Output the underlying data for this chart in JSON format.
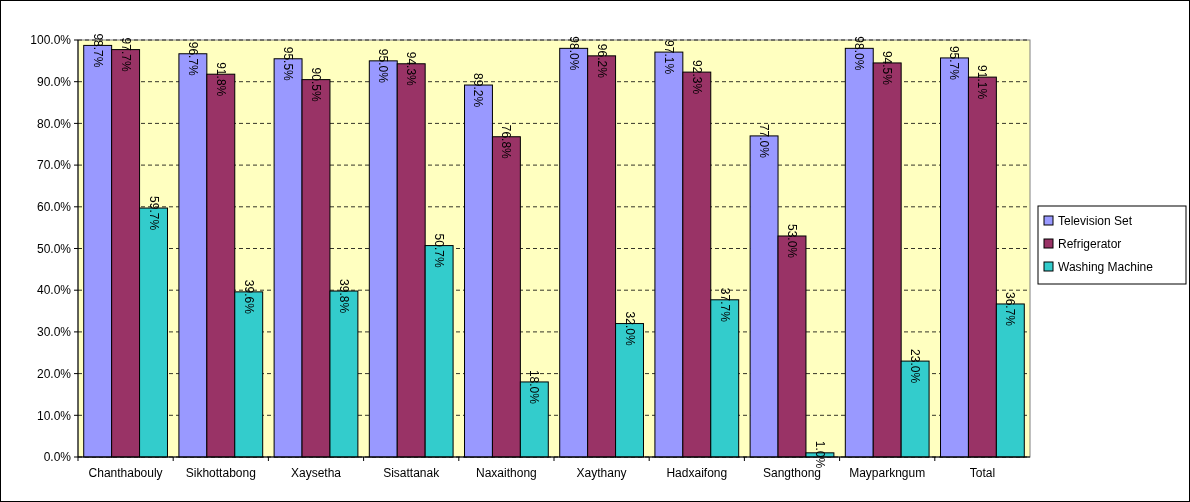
{
  "chart_data": {
    "type": "bar",
    "categories": [
      "Chanthabouly",
      "Sikhottabong",
      "Xaysetha",
      "Sisattanak",
      "Naxaithong",
      "Xaythany",
      "Hadxaifong",
      "Sangthong",
      "Mayparkngum",
      "Total"
    ],
    "series": [
      {
        "name": "Television Set",
        "color": "#9999ff",
        "values": [
          98.7,
          96.7,
          95.5,
          95.0,
          89.2,
          98.0,
          97.1,
          77.0,
          98.0,
          95.7
        ],
        "value_labels": [
          "98.7%",
          "96.7%",
          "95.5%",
          "95.0%",
          "89.2%",
          "98.0%",
          "97.1%",
          "77.0%",
          "98.0%",
          "95.7%"
        ]
      },
      {
        "name": "Refrigerator",
        "color": "#993366",
        "values": [
          97.7,
          91.8,
          90.5,
          94.3,
          76.8,
          96.2,
          92.3,
          53.0,
          94.5,
          91.1
        ],
        "value_labels": [
          "97.7%",
          "91.8%",
          "90.5%",
          "94.3%",
          "76.8%",
          "96.2%",
          "92.3%",
          "53.0%",
          "94.5%",
          "91.1%"
        ]
      },
      {
        "name": "Washing Machine",
        "color": "#33cccc",
        "values": [
          59.7,
          39.6,
          39.8,
          50.7,
          18.0,
          32.0,
          37.7,
          1.0,
          23.0,
          36.7
        ],
        "value_labels": [
          "59.7%",
          "39.6%",
          "39.8%",
          "50.7%",
          "18.0%",
          "32.0%",
          "37.7%",
          "1.0%",
          "23.0%",
          "36.7%"
        ]
      }
    ],
    "ylim": [
      0,
      100
    ],
    "yticks": [
      {
        "value": 0,
        "label": "0.0%"
      },
      {
        "value": 10,
        "label": "10.0%"
      },
      {
        "value": 20,
        "label": "20.0%"
      },
      {
        "value": 30,
        "label": "30.0%"
      },
      {
        "value": 40,
        "label": "40.0%"
      },
      {
        "value": 50,
        "label": "50.0%"
      },
      {
        "value": 60,
        "label": "60.0%"
      },
      {
        "value": 70,
        "label": "70.0%"
      },
      {
        "value": 80,
        "label": "80.0%"
      },
      {
        "value": 90,
        "label": "90.0%"
      },
      {
        "value": 100,
        "label": "100.0%"
      }
    ],
    "grid": "y",
    "legend": "right"
  }
}
